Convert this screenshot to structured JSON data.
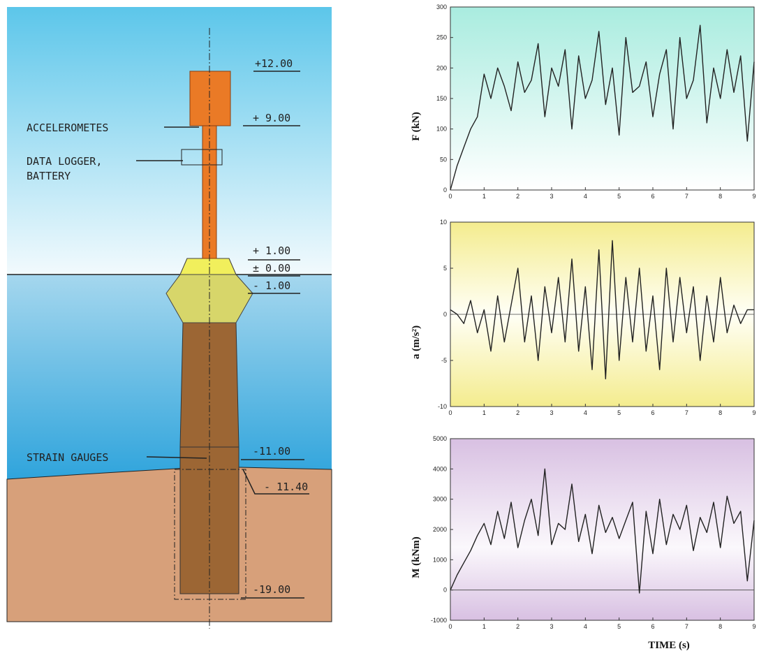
{
  "diagram": {
    "elevations": [
      "+12.00",
      "+ 9.00",
      "+ 1.00",
      "± 0.00",
      "- 1.00",
      "-11.00",
      "- 11.40",
      "-19.00"
    ],
    "labels": [
      "ACCELEROMETES",
      "DATA LOGGER,",
      "BATTERY",
      "STRAIN  GAUGES"
    ]
  },
  "chart_data": [
    {
      "type": "line",
      "ylabel": "F (kN)",
      "color": "#222222",
      "x": [
        0,
        0.2,
        0.4,
        0.6,
        0.8,
        1,
        1.2,
        1.4,
        1.6,
        1.8,
        2,
        2.2,
        2.4,
        2.6,
        2.8,
        3,
        3.2,
        3.4,
        3.6,
        3.8,
        4,
        4.2,
        4.4,
        4.6,
        4.8,
        5,
        5.2,
        5.4,
        5.6,
        5.8,
        6,
        6.2,
        6.4,
        6.6,
        6.8,
        7,
        7.2,
        7.4,
        7.6,
        7.8,
        8,
        8.2,
        8.4,
        8.6,
        8.8,
        9
      ],
      "values": [
        0,
        40,
        70,
        100,
        120,
        190,
        150,
        200,
        170,
        130,
        210,
        160,
        180,
        240,
        120,
        200,
        170,
        230,
        100,
        220,
        150,
        180,
        260,
        140,
        200,
        90,
        250,
        160,
        170,
        210,
        120,
        190,
        230,
        100,
        250,
        150,
        180,
        270,
        110,
        200,
        150,
        230,
        160,
        220,
        80,
        210
      ],
      "xlim": [
        0,
        9
      ],
      "xticks": [
        0,
        1,
        2,
        3,
        4,
        5,
        6,
        7,
        8,
        9
      ],
      "ylim": [
        0,
        300
      ],
      "yticks": [
        0,
        50,
        100,
        150,
        200,
        250,
        300
      ],
      "zero_line": false
    },
    {
      "type": "line",
      "ylabel": "a (m/s²)",
      "color": "#222222",
      "x": [
        0,
        0.2,
        0.4,
        0.6,
        0.8,
        1,
        1.2,
        1.4,
        1.6,
        1.8,
        2,
        2.2,
        2.4,
        2.6,
        2.8,
        3,
        3.2,
        3.4,
        3.6,
        3.8,
        4,
        4.2,
        4.4,
        4.6,
        4.8,
        5,
        5.2,
        5.4,
        5.6,
        5.8,
        6,
        6.2,
        6.4,
        6.6,
        6.8,
        7,
        7.2,
        7.4,
        7.6,
        7.8,
        8,
        8.2,
        8.4,
        8.6,
        8.8,
        9
      ],
      "values": [
        0.5,
        0,
        -1,
        1.5,
        -2,
        0.5,
        -4,
        2,
        -3,
        1,
        5,
        -3,
        2,
        -5,
        3,
        -2,
        4,
        -3,
        6,
        -4,
        3,
        -6,
        7,
        -7,
        8,
        -5,
        4,
        -3,
        5,
        -4,
        2,
        -6,
        5,
        -3,
        4,
        -2,
        3,
        -5,
        2,
        -3,
        4,
        -2,
        1,
        -1,
        0.5,
        0.5
      ],
      "xlim": [
        0,
        9
      ],
      "xticks": [
        0,
        1,
        2,
        3,
        4,
        5,
        6,
        7,
        8,
        9
      ],
      "ylim": [
        -10,
        10
      ],
      "yticks": [
        -10,
        -5,
        0,
        5,
        10
      ],
      "zero_line": true
    },
    {
      "type": "line",
      "ylabel": "M (kNm)",
      "xlabel": "TIME (s)",
      "color": "#222222",
      "x": [
        0,
        0.2,
        0.4,
        0.6,
        0.8,
        1,
        1.2,
        1.4,
        1.6,
        1.8,
        2,
        2.2,
        2.4,
        2.6,
        2.8,
        3,
        3.2,
        3.4,
        3.6,
        3.8,
        4,
        4.2,
        4.4,
        4.6,
        4.8,
        5,
        5.2,
        5.4,
        5.6,
        5.8,
        6,
        6.2,
        6.4,
        6.6,
        6.8,
        7,
        7.2,
        7.4,
        7.6,
        7.8,
        8,
        8.2,
        8.4,
        8.6,
        8.8,
        9
      ],
      "values": [
        0,
        500,
        900,
        1300,
        1800,
        2200,
        1500,
        2600,
        1700,
        2900,
        1400,
        2300,
        3000,
        1800,
        4000,
        1500,
        2200,
        2000,
        3500,
        1600,
        2500,
        1200,
        2800,
        1900,
        2400,
        1700,
        2300,
        2900,
        -100,
        2600,
        1200,
        3000,
        1500,
        2500,
        2000,
        2800,
        1300,
        2400,
        1900,
        2900,
        1400,
        3100,
        2200,
        2600,
        300,
        2300
      ],
      "xlim": [
        0,
        9
      ],
      "xticks": [
        0,
        1,
        2,
        3,
        4,
        5,
        6,
        7,
        8,
        9
      ],
      "ylim": [
        -1000,
        5000
      ],
      "yticks": [
        -1000,
        0,
        1000,
        2000,
        3000,
        4000,
        5000
      ],
      "zero_line": true
    }
  ]
}
